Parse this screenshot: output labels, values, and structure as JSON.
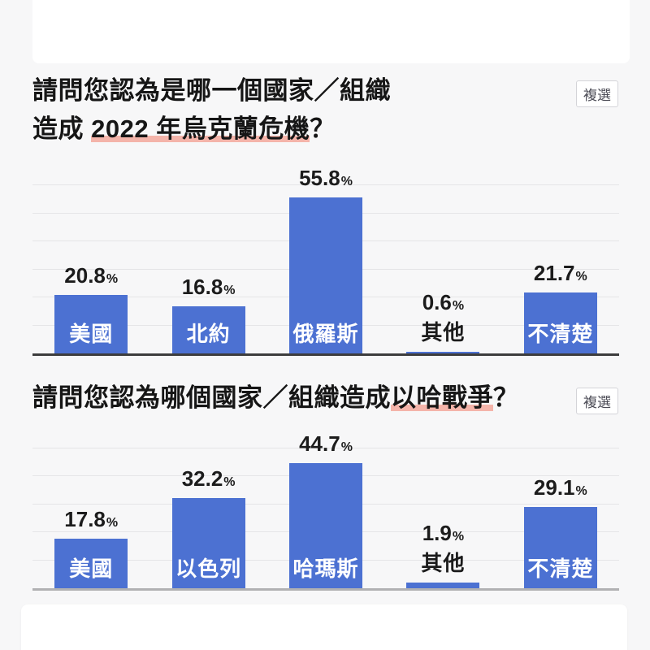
{
  "theme": {
    "background": "#f7f7f8",
    "bar_color": "#4c71d2",
    "gridline_color": "#e5e5e7",
    "title_color": "#161616",
    "underline_color": "#f4b4aa"
  },
  "q1": {
    "title_line1": "請問您認為是哪一個國家／組織",
    "title_line2_pre": "造成 ",
    "title_line2_mark": "2022 年烏克蘭危機",
    "title_line2_post": "？",
    "badge": "複選"
  },
  "q2": {
    "title_pre": "請問您認為哪個國家／組織造成",
    "title_mark": "以哈戰爭",
    "title_post": "？",
    "badge": "複選"
  },
  "chart_data": [
    {
      "type": "bar",
      "title": "請問您認為是哪一個國家／組織造成 2022 年烏克蘭危機？",
      "note": "複選",
      "categories": [
        "美國",
        "北約",
        "俄羅斯",
        "其他",
        "不清楚"
      ],
      "values": [
        20.8,
        16.8,
        55.8,
        0.6,
        21.7
      ],
      "unit": "%",
      "ylim": [
        0,
        60
      ],
      "grid_interval": 10,
      "grid": true,
      "legend": false,
      "baseline_color": "#3d3d3d"
    },
    {
      "type": "bar",
      "title": "請問您認為哪個國家／組織造成以哈戰爭？",
      "note": "複選",
      "categories": [
        "美國",
        "以色列",
        "哈瑪斯",
        "其他",
        "不清楚"
      ],
      "values": [
        17.8,
        32.2,
        44.7,
        1.9,
        29.1
      ],
      "unit": "%",
      "ylim": [
        0,
        50
      ],
      "grid_interval": 10,
      "grid": true,
      "legend": false,
      "baseline_color": "#b1b1b3"
    }
  ]
}
